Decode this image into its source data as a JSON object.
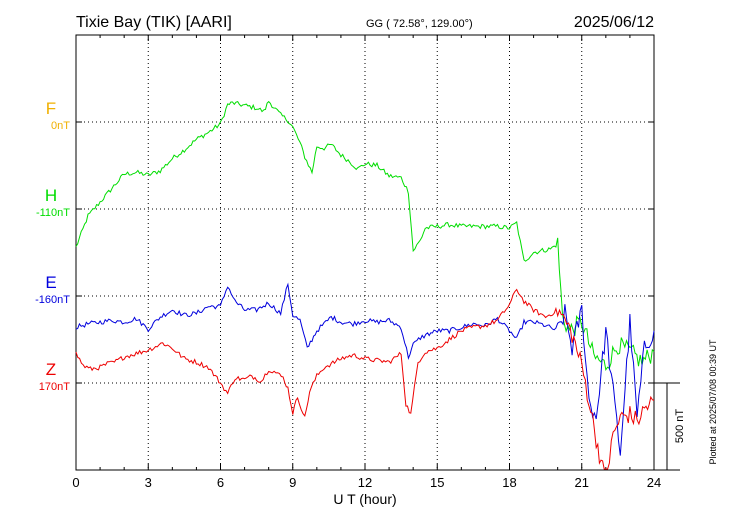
{
  "header": {
    "station": "Tixie Bay (TIK)  [AARI]",
    "coords": "GG ( 72.58°, 129.00°)",
    "date": "2025/06/12"
  },
  "footer": {
    "plotted": "Plotted at 2025/07/08 00:39 UT",
    "scale_label": "500 nT"
  },
  "chart_data": {
    "type": "line",
    "xlabel": "U T (hour)",
    "xlim": [
      0,
      24
    ],
    "xticks": [
      "0",
      "3",
      "6",
      "9",
      "12",
      "15",
      "18",
      "21",
      "24"
    ],
    "scale_nT_per_division": 500,
    "grid": true,
    "components": [
      {
        "name": "F",
        "baseline": "0nT",
        "color": "#f0b000"
      },
      {
        "name": "H",
        "baseline": "-110nT",
        "color": "#00dd00"
      },
      {
        "name": "E",
        "baseline": "-160nT",
        "color": "#0000dd"
      },
      {
        "name": "Z",
        "baseline": "170nT",
        "color": "#ee0000"
      }
    ],
    "series": [
      {
        "name": "H",
        "x": [
          0,
          0.5,
          1,
          1.5,
          2,
          2.5,
          3,
          3.5,
          4,
          4.5,
          5,
          5.5,
          6,
          6.3,
          6.5,
          7,
          7.5,
          7.8,
          8,
          8.5,
          8.8,
          9,
          9.3,
          9.5,
          9.8,
          10,
          10.3,
          10.6,
          11,
          11.3,
          11.7,
          12,
          12.5,
          13,
          13.5,
          13.8,
          14,
          14.3,
          14.5,
          15,
          15.5,
          16,
          16.5,
          17,
          17.5,
          18,
          18.3,
          18.6,
          19,
          19.3,
          19.7,
          20,
          20.2,
          20.5,
          21,
          21.5,
          22,
          22.5,
          23,
          23.5,
          24
        ],
        "values": [
          -220,
          -40,
          40,
          120,
          200,
          210,
          195,
          220,
          290,
          340,
          400,
          440,
          490,
          600,
          610,
          595,
          580,
          560,
          620,
          540,
          510,
          470,
          380,
          300,
          210,
          360,
          350,
          370,
          310,
          280,
          230,
          260,
          250,
          190,
          180,
          100,
          -240,
          -180,
          -110,
          -100,
          -90,
          -100,
          -100,
          -100,
          -100,
          -110,
          -80,
          -300,
          -250,
          -240,
          -230,
          -200,
          -620,
          -700,
          -650,
          -850,
          -900,
          -780,
          -820,
          -880,
          -820
        ]
      },
      {
        "name": "E",
        "x": [
          0,
          0.5,
          1,
          1.5,
          2,
          2.5,
          3,
          3.5,
          4,
          4.5,
          5,
          5.5,
          6,
          6.3,
          6.6,
          7,
          7.5,
          8,
          8.5,
          8.8,
          9,
          9.3,
          9.6,
          10,
          10.3,
          10.6,
          11,
          11.5,
          12,
          12.5,
          13,
          13.5,
          13.8,
          14,
          14.3,
          14.6,
          15,
          15.5,
          16,
          16.5,
          17,
          17.5,
          18,
          18.3,
          18.6,
          19,
          19.5,
          20,
          20.3,
          20.6,
          21,
          21.3,
          21.6,
          22,
          22.3,
          22.6,
          23,
          23.3,
          23.6,
          24
        ],
        "values": [
          -180,
          -160,
          -150,
          -140,
          -150,
          -130,
          -190,
          -120,
          -80,
          -110,
          -100,
          -60,
          -60,
          60,
          -30,
          -80,
          -80,
          -40,
          -100,
          70,
          -110,
          -140,
          -300,
          -200,
          -160,
          -120,
          -150,
          -160,
          -140,
          -150,
          -140,
          -180,
          -350,
          -280,
          -240,
          -220,
          -200,
          -200,
          -180,
          -160,
          -170,
          -130,
          -200,
          -250,
          -150,
          -150,
          -170,
          -200,
          -100,
          -300,
          -80,
          -600,
          -700,
          -200,
          -550,
          -900,
          -150,
          -700,
          -300,
          -200
        ]
      },
      {
        "name": "Z",
        "x": [
          0,
          0.3,
          0.6,
          1,
          1.3,
          1.6,
          2,
          2.5,
          3,
          3.3,
          3.6,
          4,
          4.5,
          5,
          5.5,
          6,
          6.3,
          6.6,
          7,
          7.3,
          7.7,
          8,
          8.3,
          8.6,
          8.8,
          9,
          9.2,
          9.5,
          9.7,
          10,
          10.3,
          10.6,
          11,
          11.5,
          12,
          12.5,
          13,
          13.5,
          13.7,
          13.9,
          14.2,
          14.5,
          15,
          15.5,
          16,
          16.5,
          17,
          17.5,
          18,
          18.3,
          18.6,
          19,
          19.5,
          20,
          20.3,
          20.6,
          21,
          21.3,
          21.6,
          22,
          22.3,
          22.6,
          23,
          23.3,
          23.6,
          24
        ],
        "values": [
          170,
          100,
          80,
          90,
          110,
          120,
          150,
          170,
          190,
          210,
          230,
          200,
          140,
          120,
          90,
          0,
          -60,
          30,
          20,
          40,
          10,
          80,
          60,
          30,
          -30,
          -170,
          -80,
          -200,
          -50,
          40,
          90,
          110,
          140,
          160,
          140,
          130,
          120,
          170,
          -120,
          -180,
          120,
          180,
          200,
          250,
          300,
          320,
          330,
          360,
          450,
          540,
          470,
          420,
          380,
          420,
          360,
          280,
          100,
          -100,
          -320,
          -580,
          -300,
          -200,
          -180,
          -220,
          -150,
          -100
        ]
      }
    ]
  }
}
